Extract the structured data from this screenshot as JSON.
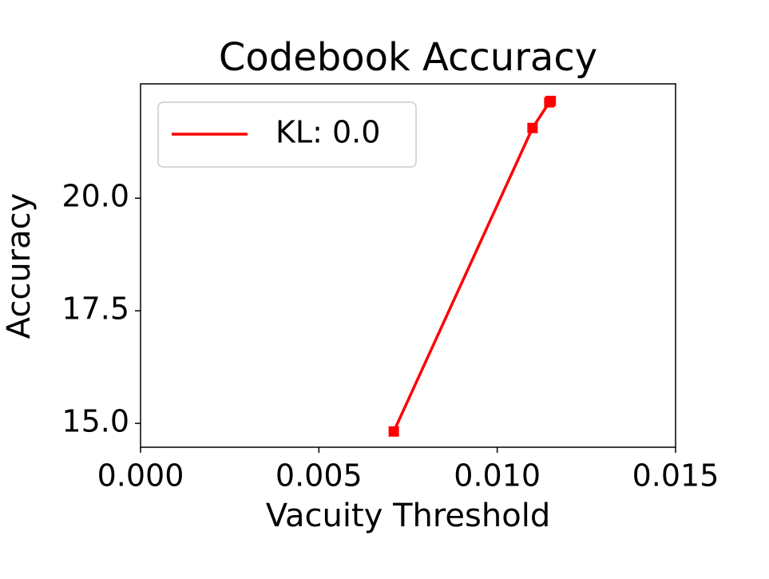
{
  "chart_data": {
    "type": "line",
    "title": "Codebook Accuracy",
    "x_label": "Vacuity Threshold",
    "y_label": "Accuracy",
    "series": [
      {
        "name": "KL: 0.0",
        "color": "#ff0000",
        "x": [
          0.0071,
          0.01099,
          0.01146,
          0.0115
        ],
        "values": [
          14.82,
          21.56,
          22.13,
          22.16
        ]
      }
    ],
    "xlim": [
      0,
      0.015
    ],
    "xticks": [
      {
        "value": 0,
        "label": "0.000"
      },
      {
        "value": 0.005,
        "label": "0.005"
      },
      {
        "value": 0.01,
        "label": "0.010"
      },
      {
        "value": 0.015,
        "label": "0.015"
      }
    ],
    "ylim": [
      14.47,
      22.54
    ],
    "yticks": [
      {
        "value": 15,
        "label": "15.0"
      },
      {
        "value": 17.5,
        "label": "17.5"
      },
      {
        "value": 20,
        "label": "20.0"
      }
    ],
    "legend": "upper left",
    "grid": false
  }
}
